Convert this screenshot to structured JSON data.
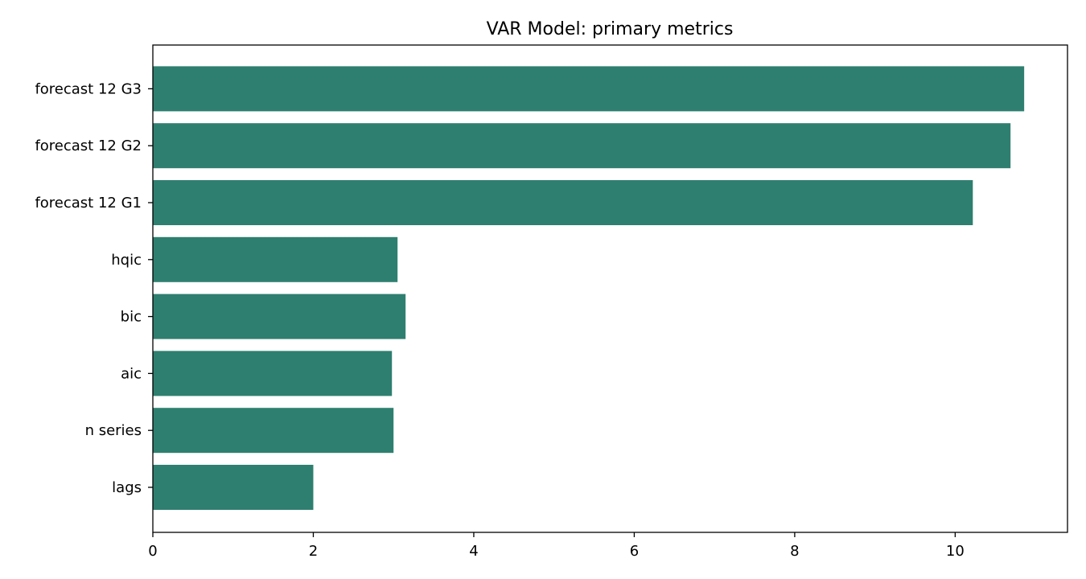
{
  "colors": {
    "bar": "#2e7f6f",
    "axis": "#000000",
    "background": "#ffffff"
  },
  "chart_data": {
    "type": "bar",
    "orientation": "horizontal",
    "title": "VAR Model: primary metrics",
    "xlabel": "",
    "ylabel": "",
    "categories": [
      "lags",
      "n series",
      "aic",
      "bic",
      "hqic",
      "forecast 12 G1",
      "forecast 12 G2",
      "forecast 12 G3"
    ],
    "values": [
      2.0,
      3.0,
      2.98,
      3.15,
      3.05,
      10.22,
      10.69,
      10.86
    ],
    "xlim": [
      0,
      11.4
    ],
    "xticks": [
      0,
      2,
      4,
      6,
      8,
      10
    ],
    "grid": false,
    "legend": "none"
  }
}
